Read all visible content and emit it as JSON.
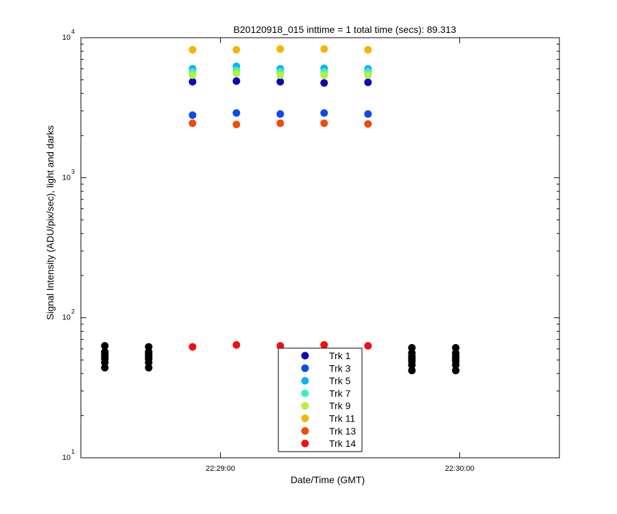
{
  "chart_data": {
    "type": "scatter",
    "title": "B20120918_015 inttime = 1 total time (secs): 89.313",
    "xlabel": "Date/Time (GMT)",
    "ylabel": "Signal Intensity (ADU/pix/sec), light and darks",
    "yscale": "log",
    "ylim": [
      10,
      10000
    ],
    "xlim": [
      "22:28:25",
      "22:30:25"
    ],
    "x_ticks": [
      {
        "value": "22:29:00",
        "label": "22:29:00"
      },
      {
        "value": "22:30:00",
        "label": "22:30:00"
      }
    ],
    "y_ticks": [
      {
        "value": 10,
        "base": "10",
        "exp": "1"
      },
      {
        "value": 100,
        "base": "10",
        "exp": "2"
      },
      {
        "value": 1000,
        "base": "10",
        "exp": "3"
      },
      {
        "value": 10000,
        "base": "10",
        "exp": "4"
      }
    ],
    "grid": false,
    "legend_position": "bottom-center",
    "light_times": [
      "22:28:53",
      "22:29:04",
      "22:29:15",
      "22:29:26",
      "22:29:37"
    ],
    "series": [
      {
        "name": "Trk 1",
        "color": "#0a0ab4",
        "values": [
          4850,
          4900,
          4850,
          4750,
          4800
        ]
      },
      {
        "name": "Trk 3",
        "color": "#0a4bf0",
        "values": [
          2800,
          2900,
          2850,
          2900,
          2850
        ]
      },
      {
        "name": "Trk 5",
        "color": "#0ab4f0",
        "values": [
          6000,
          6250,
          6000,
          6050,
          6000
        ]
      },
      {
        "name": "Trk 7",
        "color": "#3cf0be",
        "values": [
          5700,
          5850,
          5700,
          5700,
          5700
        ]
      },
      {
        "name": "Trk 9",
        "color": "#b4f03c",
        "values": [
          5400,
          5550,
          5400,
          5400,
          5400
        ]
      },
      {
        "name": "Trk 11",
        "color": "#f8b400",
        "values": [
          8200,
          8200,
          8300,
          8300,
          8200
        ]
      },
      {
        "name": "Trk 13",
        "color": "#f04b0a",
        "values": [
          2450,
          2400,
          2450,
          2450,
          2420
        ]
      },
      {
        "name": "Trk 14",
        "color": "#f01010",
        "values": [
          62,
          64,
          63,
          64,
          63
        ]
      }
    ],
    "dark_series": {
      "color": "#000000",
      "times": [
        "22:28:31",
        "22:28:42",
        "22:29:48",
        "22:29:59"
      ],
      "values": [
        [
          44,
          48,
          51,
          53,
          55,
          57,
          63
        ],
        [
          44,
          48,
          51,
          53,
          55,
          57,
          62
        ],
        [
          42,
          46,
          49,
          51,
          53,
          56,
          61
        ],
        [
          42,
          46,
          49,
          51,
          53,
          56,
          61
        ]
      ]
    }
  }
}
